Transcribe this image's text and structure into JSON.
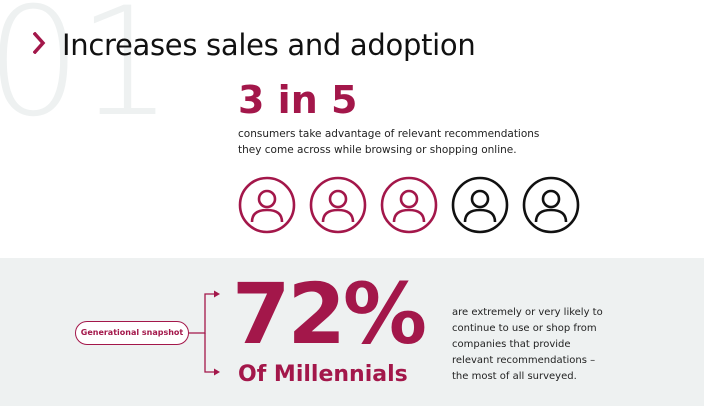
{
  "background_number": "01",
  "header": {
    "title": "Increases sales and adoption",
    "chevron_icon": "chevron-right-icon"
  },
  "stat": {
    "headline": "3 in 5",
    "description_lines": [
      "consumers take advantage of relevant recommendations",
      "they come across while browsing or shopping online."
    ],
    "highlighted_count": 3,
    "total_count": 5,
    "icon": "person-icon"
  },
  "snapshot": {
    "pill_label": "Generational snapshot",
    "percentage": "72%",
    "group": "Of Millennials",
    "description_lines": [
      "are extremely or very likely to",
      "continue to use or shop from",
      "companies that provide",
      "relevant recommendations –",
      "the most of all surveyed."
    ]
  },
  "colors": {
    "accent": "#a3174a",
    "text": "#111111",
    "band": "#eef1f1",
    "icon_inactive": "#111111"
  }
}
